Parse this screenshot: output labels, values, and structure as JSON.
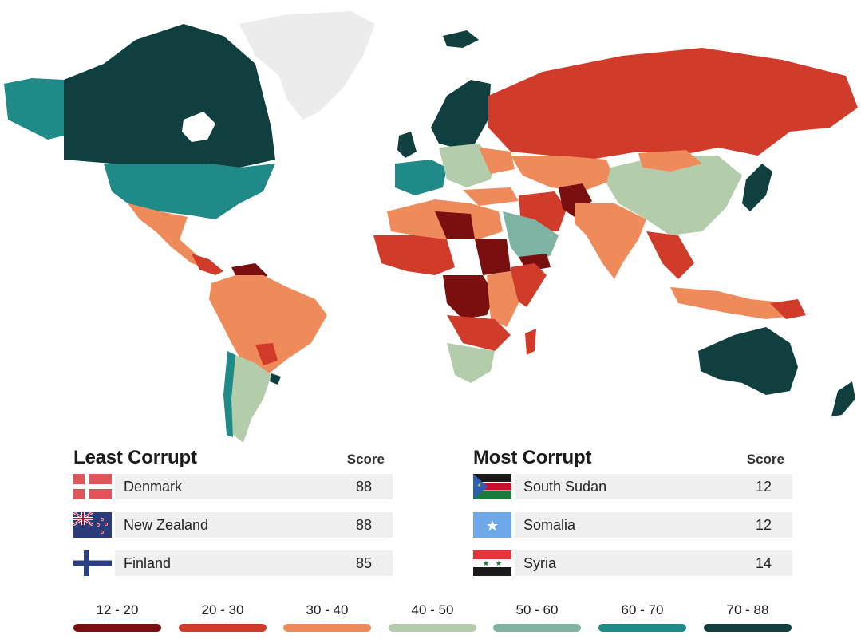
{
  "colors": {
    "c1": "#7a0f0f",
    "c2": "#d13b2a",
    "c3": "#ef8a5a",
    "c4": "#b3cdaa",
    "c5": "#7fb3a3",
    "c6": "#1f8a88",
    "c7": "#0f3f3f",
    "nodata": "#ececec"
  },
  "least": {
    "title": "Least Corrupt",
    "score_label": "Score",
    "rows": [
      {
        "name": "Denmark",
        "score": "88",
        "flag": "denmark-flag"
      },
      {
        "name": "New Zealand",
        "score": "88",
        "flag": "new-zealand-flag"
      },
      {
        "name": "Finland",
        "score": "85",
        "flag": "finland-flag"
      }
    ]
  },
  "most": {
    "title": "Most Corrupt",
    "score_label": "Score",
    "rows": [
      {
        "name": "South Sudan",
        "score": "12",
        "flag": "south-sudan-flag"
      },
      {
        "name": "Somalia",
        "score": "12",
        "flag": "somalia-flag"
      },
      {
        "name": "Syria",
        "score": "14",
        "flag": "syria-flag"
      }
    ]
  },
  "legend": [
    {
      "label": "12 - 20",
      "color": "#7a0f0f"
    },
    {
      "label": "20 - 30",
      "color": "#d13b2a"
    },
    {
      "label": "30 - 40",
      "color": "#ef8a5a"
    },
    {
      "label": "40 - 50",
      "color": "#b3cdaa"
    },
    {
      "label": "50 - 60",
      "color": "#7fb3a3"
    },
    {
      "label": "60 - 70",
      "color": "#1f8a88"
    },
    {
      "label": "70 - 88",
      "color": "#0f3f3f"
    }
  ]
}
